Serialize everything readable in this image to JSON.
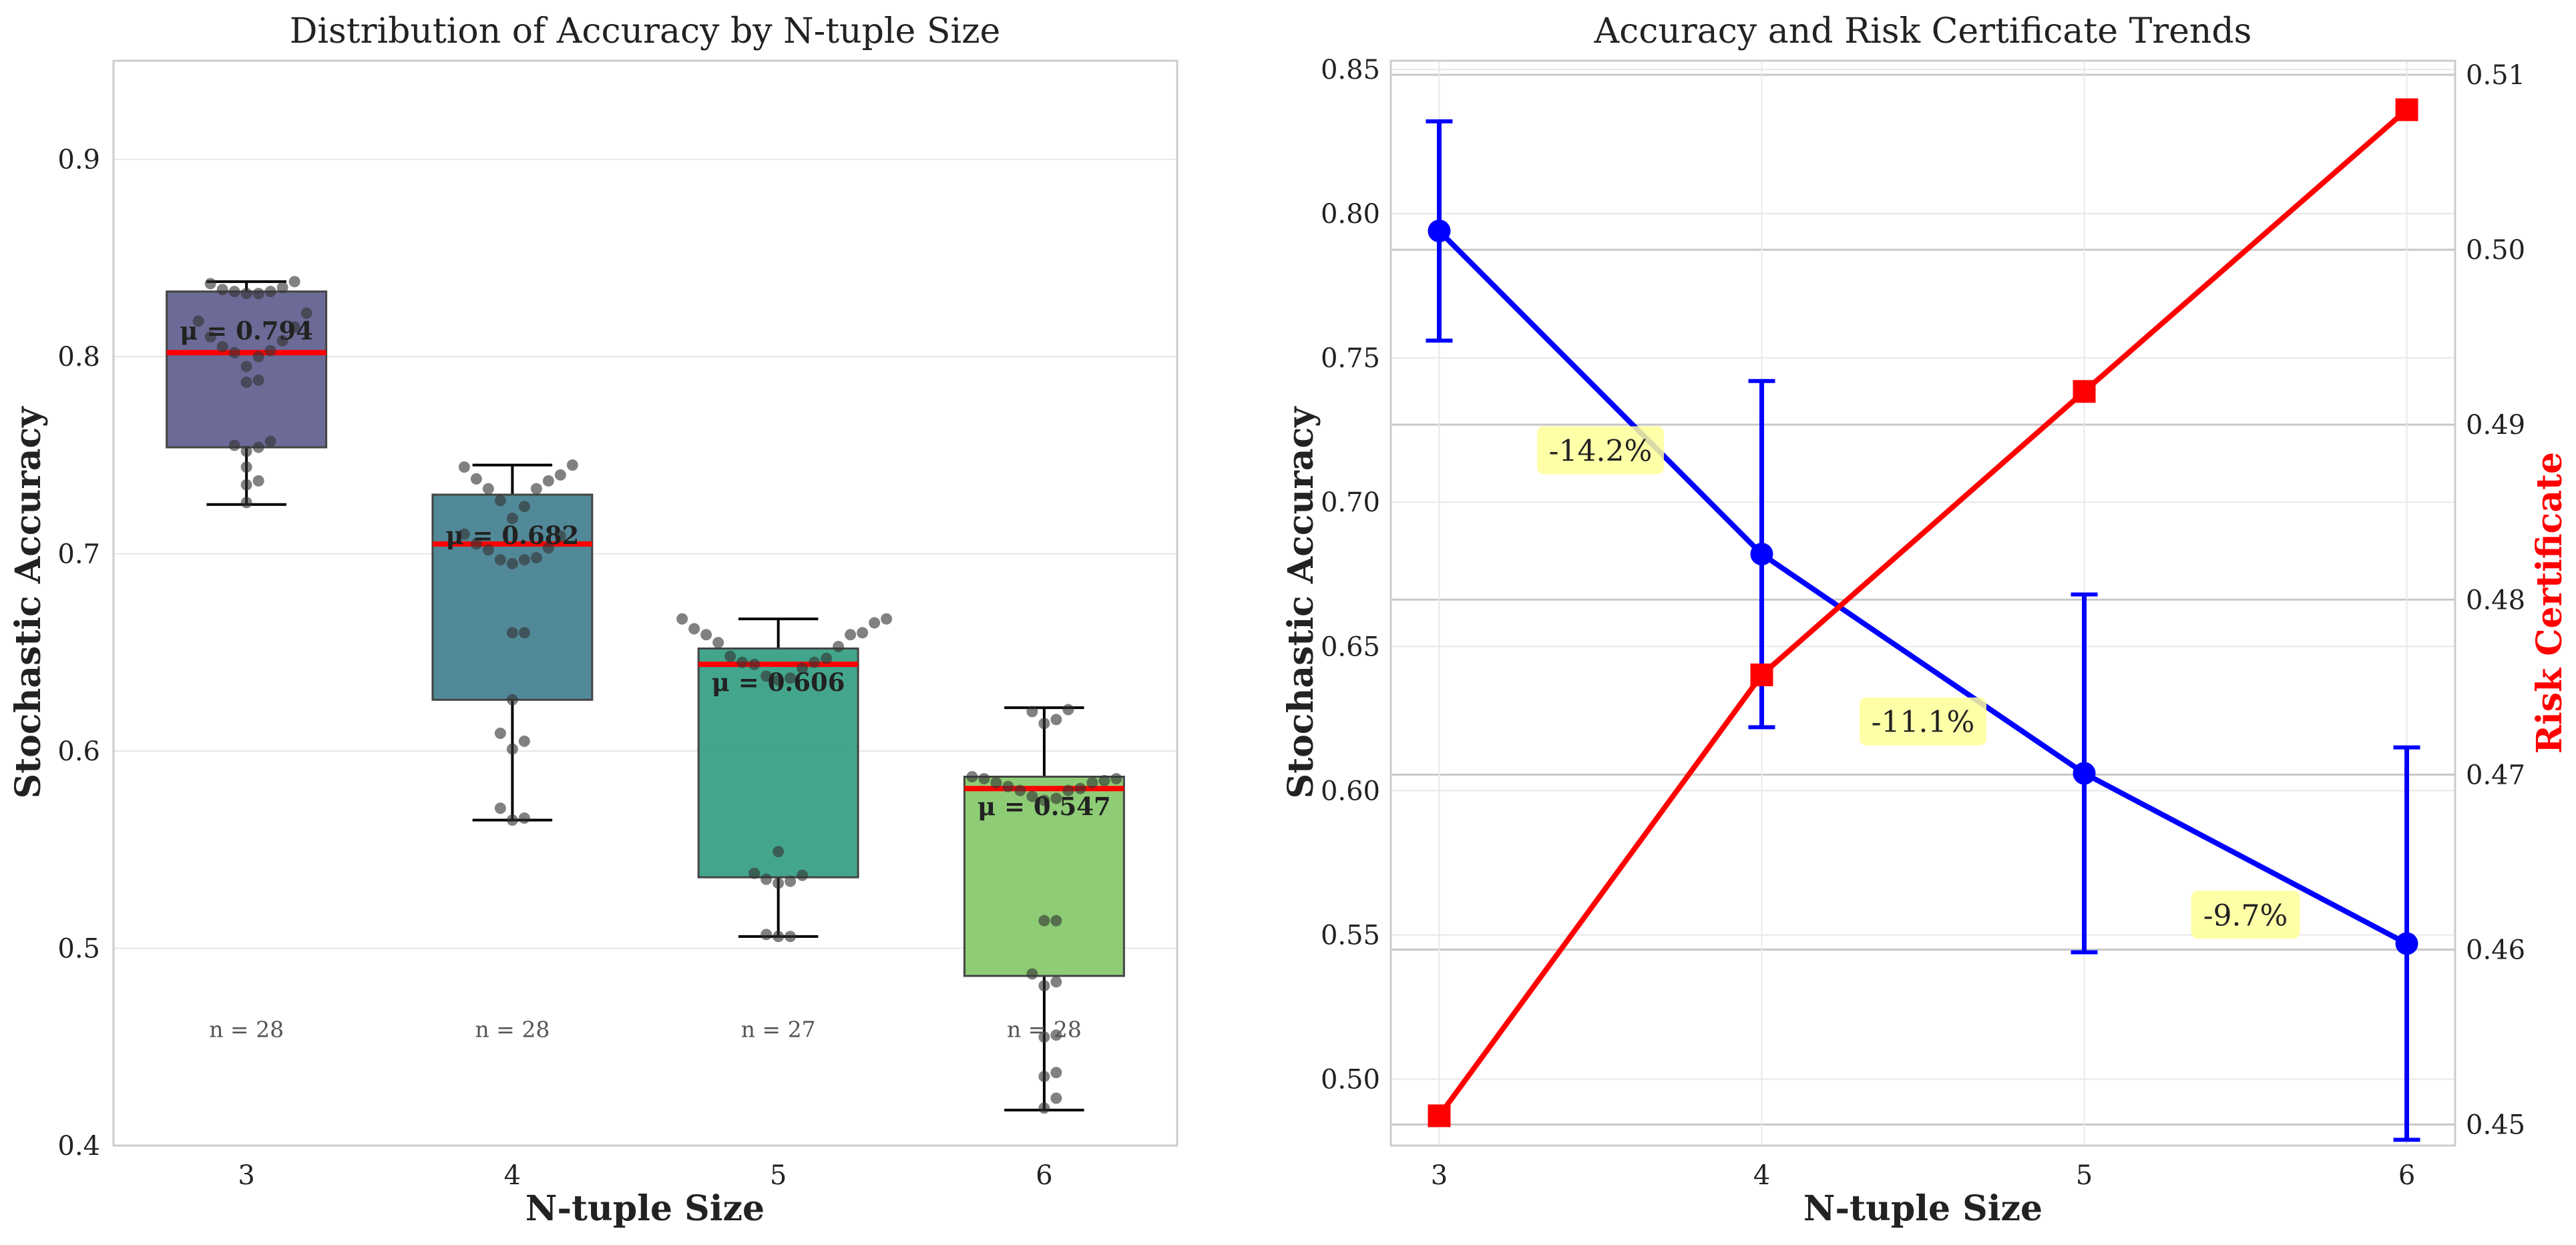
{
  "chart_data": [
    {
      "type": "box",
      "title": "Distribution of Accuracy by N-tuple Size",
      "xlabel": "N-tuple Size",
      "ylabel": "Stochastic Accuracy",
      "categories": [
        "3",
        "4",
        "5",
        "6"
      ],
      "ylim": [
        0.4,
        0.95
      ],
      "yticks": [
        0.4,
        0.5,
        0.6,
        0.7,
        0.8,
        0.9
      ],
      "ytick_labels": [
        "0.4",
        "0.5",
        "0.6",
        "0.7",
        "0.8",
        "0.9"
      ],
      "grid": true,
      "boxes": [
        {
          "category": "3",
          "whisker_low": 0.725,
          "q1": 0.754,
          "median": 0.802,
          "q3": 0.833,
          "whisker_high": 0.838,
          "mean_label": "μ = 0.794",
          "n_label": "n = 28",
          "color": "#5c5b8c",
          "points": [
            0.838,
            0.837,
            0.835,
            0.834,
            0.833,
            0.833,
            0.832,
            0.832,
            0.822,
            0.818,
            0.815,
            0.81,
            0.808,
            0.805,
            0.803,
            0.802,
            0.8,
            0.795,
            0.788,
            0.787,
            0.757,
            0.755,
            0.754,
            0.752,
            0.744,
            0.737,
            0.735,
            0.726
          ]
        },
        {
          "category": "4",
          "whisker_low": 0.565,
          "q1": 0.626,
          "median": 0.705,
          "q3": 0.73,
          "whisker_high": 0.745,
          "mean_label": "μ = 0.682",
          "n_label": "n = 28",
          "color": "#3f7c8e",
          "points": [
            0.745,
            0.744,
            0.74,
            0.738,
            0.737,
            0.733,
            0.733,
            0.727,
            0.724,
            0.718,
            0.71,
            0.709,
            0.705,
            0.703,
            0.702,
            0.698,
            0.697,
            0.697,
            0.695,
            0.66,
            0.66,
            0.626,
            0.609,
            0.605,
            0.601,
            0.571,
            0.566,
            0.565
          ]
        },
        {
          "category": "5",
          "whisker_low": 0.506,
          "q1": 0.536,
          "median": 0.644,
          "q3": 0.652,
          "whisker_high": 0.667,
          "mean_label": "μ = 0.606",
          "n_label": "n = 27",
          "color": "#2f9c7f",
          "points": [
            0.667,
            0.667,
            0.665,
            0.662,
            0.66,
            0.659,
            0.659,
            0.655,
            0.653,
            0.648,
            0.647,
            0.645,
            0.645,
            0.644,
            0.642,
            0.638,
            0.637,
            0.636,
            0.549,
            0.538,
            0.537,
            0.535,
            0.534,
            0.533,
            0.507,
            0.506,
            0.506
          ]
        },
        {
          "category": "6",
          "whisker_low": 0.418,
          "q1": 0.486,
          "median": 0.581,
          "q3": 0.587,
          "whisker_high": 0.622,
          "mean_label": "μ = 0.547",
          "n_label": "n = 28",
          "color": "#82c666",
          "points": [
            0.621,
            0.62,
            0.616,
            0.614,
            0.587,
            0.586,
            0.586,
            0.585,
            0.584,
            0.584,
            0.582,
            0.581,
            0.58,
            0.58,
            0.577,
            0.576,
            0.575,
            0.514,
            0.514,
            0.487,
            0.483,
            0.481,
            0.456,
            0.455,
            0.437,
            0.435,
            0.424,
            0.419
          ]
        }
      ],
      "median_color": "#ff0000"
    },
    {
      "type": "line",
      "title": "Accuracy and Risk Certificate Trends",
      "xlabel": "N-tuple Size",
      "ylabel": "Stochastic Accuracy",
      "y2label": "Risk Certificate",
      "x": [
        3,
        4,
        5,
        6
      ],
      "xticks": [
        "3",
        "4",
        "5",
        "6"
      ],
      "xlim": [
        2.85,
        6.15
      ],
      "ylim": [
        0.477,
        0.853
      ],
      "yticks": [
        0.5,
        0.55,
        0.6,
        0.65,
        0.7,
        0.75,
        0.8,
        0.85
      ],
      "ytick_labels": [
        "0.50",
        "0.55",
        "0.60",
        "0.65",
        "0.70",
        "0.75",
        "0.80",
        "0.85"
      ],
      "y2lim": [
        0.4488,
        0.5108
      ],
      "y2ticks": [
        0.45,
        0.46,
        0.47,
        0.48,
        0.49,
        0.5,
        0.51
      ],
      "y2tick_labels": [
        "0.45",
        "0.46",
        "0.47",
        "0.48",
        "0.49",
        "0.50",
        "0.51"
      ],
      "grid": true,
      "series": [
        {
          "axis": "left",
          "color": "#0000ff",
          "marker": "circle",
          "values": [
            0.794,
            0.682,
            0.606,
            0.547
          ],
          "errors": [
            0.038,
            0.06,
            0.062,
            0.068
          ]
        },
        {
          "axis": "right",
          "color": "#ff0000",
          "marker": "square",
          "values": [
            0.4505,
            0.4757,
            0.4919,
            0.508
          ]
        }
      ],
      "annotations": [
        {
          "text": "-14.2%",
          "x": 3.5,
          "y": 0.718
        },
        {
          "text": "-11.1%",
          "x": 4.5,
          "y": 0.624
        },
        {
          "text": "-9.7%",
          "x": 5.5,
          "y": 0.557
        }
      ],
      "annotation_color": "#ffff99"
    }
  ]
}
